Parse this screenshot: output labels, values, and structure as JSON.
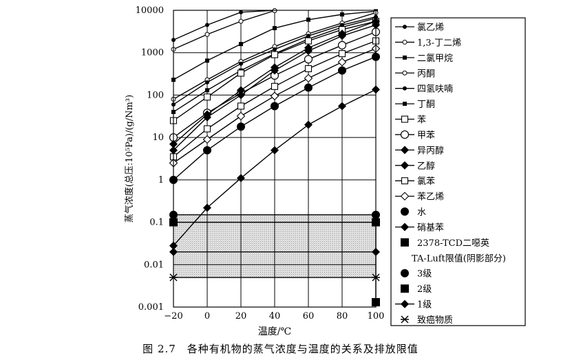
{
  "caption": "图 2.7　各种有机物的蒸气浓度与温度的关系及排放限值",
  "chart_data": {
    "type": "line",
    "xlabel": "温度/℃",
    "ylabel": "蒸气浓度(总压:10⁵Pa)/(g/Nm³)",
    "xlim": [
      -20,
      100
    ],
    "ylim": [
      0.001,
      10000
    ],
    "yscale": "log",
    "grid": true,
    "legend_position": "right",
    "x_ticks": [
      "-20",
      "0",
      "20",
      "40",
      "60",
      "80",
      "100"
    ],
    "y_ticks": [
      "0.001",
      "0.01",
      "0.1",
      "1",
      "10",
      "100",
      "1000",
      "10000"
    ],
    "shaded_region": {
      "label": "TA-Luft限值(阴影部分)",
      "y_range": [
        0.005,
        0.15
      ],
      "x_range": [
        -20,
        100
      ]
    },
    "series": [
      {
        "name": "氯乙烯",
        "marker": "dot-small",
        "x": [
          -20,
          0,
          20,
          40
        ],
        "y": [
          2000,
          4500,
          9000,
          10000
        ]
      },
      {
        "name": "1,3-丁二烯",
        "marker": "circle-open-small",
        "x": [
          -20,
          0,
          20,
          40
        ],
        "y": [
          1200,
          2700,
          5500,
          9800
        ]
      },
      {
        "name": "二氯甲烷",
        "marker": "square-small",
        "x": [
          -20,
          0,
          20,
          40,
          60,
          80,
          100
        ],
        "y": [
          230,
          650,
          1600,
          3800,
          6000,
          8000,
          9500
        ]
      },
      {
        "name": "丙酮",
        "marker": "circle-open-small",
        "x": [
          -20,
          0,
          20,
          40,
          60,
          80,
          100
        ],
        "y": [
          80,
          230,
          620,
          1400,
          2800,
          5000,
          8800
        ]
      },
      {
        "name": "四氢呋喃",
        "marker": "dot-small",
        "x": [
          -20,
          0,
          20,
          40,
          60,
          80,
          100
        ],
        "y": [
          60,
          200,
          550,
          1200,
          2500,
          4500,
          7000
        ]
      },
      {
        "name": "丁酮",
        "marker": "square-small",
        "x": [
          -20,
          0,
          20,
          40,
          60,
          80,
          100
        ],
        "y": [
          40,
          130,
          380,
          950,
          2100,
          4000,
          6500
        ]
      },
      {
        "name": "苯",
        "marker": "square-open",
        "x": [
          -20,
          0,
          20,
          40,
          60,
          80,
          100
        ],
        "y": [
          25,
          90,
          330,
          900,
          1900,
          3500,
          5500
        ]
      },
      {
        "name": "甲苯",
        "marker": "circle-open",
        "x": [
          -20,
          0,
          20,
          40,
          60,
          80,
          100
        ],
        "y": [
          10,
          38,
          110,
          290,
          700,
          1500,
          3100
        ]
      },
      {
        "name": "异丙醇",
        "marker": "diamond-filled",
        "x": [
          -20,
          0,
          20,
          40,
          60,
          80,
          100
        ],
        "y": [
          7,
          35,
          130,
          450,
          1300,
          2800,
          5500
        ]
      },
      {
        "name": "乙醇",
        "marker": "diamond-filled",
        "x": [
          -20,
          0,
          20,
          40,
          60,
          80,
          100
        ],
        "y": [
          5,
          30,
          100,
          380,
          1100,
          2500,
          4500
        ]
      },
      {
        "name": "氯苯",
        "marker": "square-open",
        "x": [
          -20,
          0,
          20,
          40,
          60,
          80,
          100
        ],
        "y": [
          3.5,
          16,
          55,
          160,
          420,
          950,
          1900
        ]
      },
      {
        "name": "苯乙烯",
        "marker": "diamond-open",
        "x": [
          -20,
          0,
          20,
          40,
          60,
          80,
          100
        ],
        "y": [
          2.5,
          9,
          32,
          95,
          250,
          600,
          1250
        ]
      },
      {
        "name": "水",
        "marker": "dot-large",
        "x": [
          -20,
          0,
          20,
          40,
          60,
          80,
          100
        ],
        "y": [
          1,
          5,
          18,
          55,
          150,
          380,
          800
        ]
      },
      {
        "name": "硝基苯",
        "marker": "diamond-filled",
        "x": [
          -20,
          0,
          20,
          40,
          60,
          80,
          100
        ],
        "y": [
          0.028,
          0.22,
          1.1,
          5,
          20,
          55,
          135
        ]
      }
    ],
    "limit_series": [
      {
        "name": "2378-TCD二噁英",
        "marker": "square-large",
        "x": [],
        "y": []
      },
      {
        "name": "3级",
        "marker": "dot-large",
        "x": [
          -20,
          100
        ],
        "y": [
          0.15,
          0.15
        ]
      },
      {
        "name": "2级",
        "marker": "square-large",
        "x": [
          -20,
          100,
          100
        ],
        "y": [
          0.1,
          0.1,
          0.0013
        ]
      },
      {
        "name": "1级",
        "marker": "diamond-filled",
        "x": [
          -20,
          100
        ],
        "y": [
          0.02,
          0.02
        ]
      },
      {
        "name": "致癌物质",
        "marker": "asterisk",
        "x": [
          -20,
          100
        ],
        "y": [
          0.005,
          0.005
        ]
      }
    ]
  }
}
